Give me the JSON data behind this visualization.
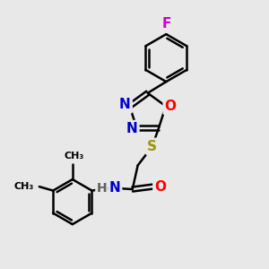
{
  "bg_color": "#e8e8e8",
  "bond_color": "#000000",
  "N_color": "#0000cc",
  "O_color": "#ff0000",
  "S_color": "#999900",
  "F_color": "#cc00cc",
  "line_width": 1.8,
  "font_size_atom": 11,
  "font_size_small": 9,
  "xlim": [
    0,
    10
  ],
  "ylim": [
    0,
    10
  ]
}
